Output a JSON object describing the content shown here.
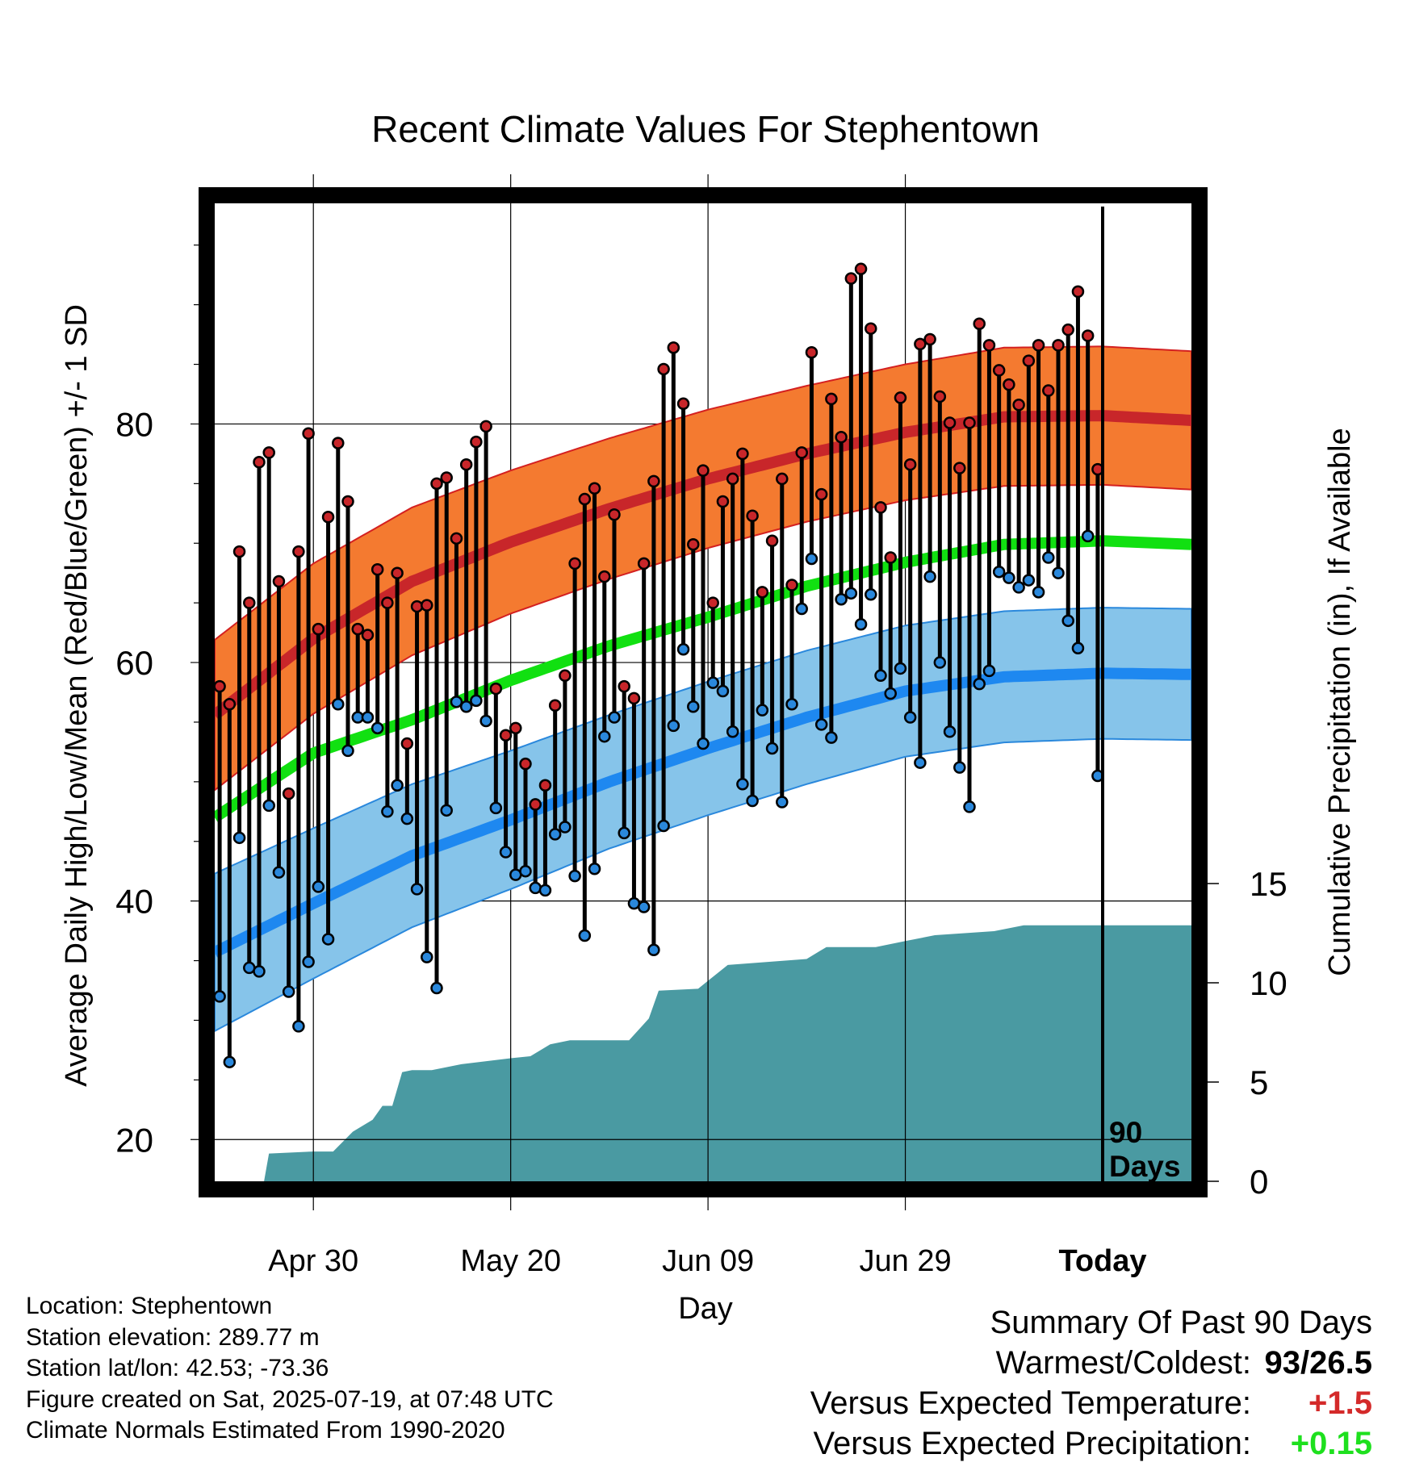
{
  "chart_data": {
    "type": "line",
    "title": "Recent Climate Values For Stephentown",
    "xlabel": "Day",
    "ylabel_left": "Average Daily High/Low/Mean (Red/Blue/Green) +/- 1 SD",
    "ylabel_right": "Cumulative Precipitation (in), If Available",
    "x_range": [
      -90,
      9
    ],
    "y_left_range": [
      16.5,
      98.5
    ],
    "y_left_ticks": [
      20,
      40,
      60,
      80
    ],
    "y_left_tick_labels": [
      "20",
      "40",
      "60",
      "80"
    ],
    "y_right_ticks": [
      0,
      5,
      10,
      15
    ],
    "y_right_tick_labels": [
      "0",
      "5",
      "10",
      "15"
    ],
    "x_tick_days": [
      -80,
      -60,
      -40,
      -20,
      0
    ],
    "x_tick_labels": [
      "Apr 30",
      "May 20",
      "Jun 09",
      "Jun 29",
      "Today"
    ],
    "today_label": "90 Days",
    "grid": true,
    "normals": {
      "days": [
        -90,
        -80,
        -70,
        -60,
        -50,
        -40,
        -30,
        -20,
        -10,
        0,
        9
      ],
      "high_mean": [
        55.6,
        62.0,
        66.8,
        70.1,
        72.9,
        75.4,
        77.5,
        79.3,
        80.6,
        80.7,
        80.3
      ],
      "high_sd": [
        6.3,
        6.3,
        6.2,
        6.0,
        5.9,
        5.8,
        5.7,
        5.7,
        5.8,
        5.8,
        5.8
      ],
      "low_mean": [
        35.7,
        39.8,
        43.8,
        46.8,
        50.0,
        52.8,
        55.4,
        57.6,
        58.8,
        59.1,
        59.0
      ],
      "low_sd": [
        6.6,
        6.3,
        6.0,
        5.8,
        5.6,
        5.6,
        5.6,
        5.5,
        5.5,
        5.5,
        5.5
      ],
      "mean": [
        47.0,
        52.4,
        55.2,
        58.5,
        61.4,
        63.8,
        66.4,
        68.4,
        69.9,
        70.2,
        69.9
      ]
    },
    "series": [
      {
        "name": "High",
        "color": "#c8262a",
        "values": [
          58,
          56.5,
          69.3,
          65,
          76.8,
          77.6,
          66.8,
          49,
          69.3,
          79.2,
          62.8,
          72.2,
          78.4,
          73.5,
          62.8,
          62.3,
          67.8,
          65,
          67.5,
          53.2,
          64.7,
          64.8,
          75,
          75.5,
          70.4,
          76.6,
          78.5,
          79.8,
          57.8,
          53.9,
          54.5,
          51.5,
          48.1,
          49.7,
          56.4,
          58.9,
          68.3,
          73.7,
          74.6,
          67.2,
          72.4,
          58,
          57,
          68.3,
          75.2,
          84.6,
          86.4,
          81.7,
          69.9,
          76.1,
          65,
          73.5,
          75.4,
          77.5,
          72.3,
          65.9,
          70.2,
          75.4,
          66.5,
          77.6,
          86,
          74.1,
          82.1,
          78.9,
          92.2,
          93,
          88,
          73,
          68.8,
          82.2,
          76.6,
          86.7,
          87.1,
          82.3,
          80.1,
          76.3,
          80.1,
          88.4,
          86.6,
          84.5,
          83.3,
          81.6,
          85.3,
          86.6,
          82.8,
          86.6,
          87.9,
          91.1,
          87.4,
          76.2
        ]
      },
      {
        "name": "Low",
        "color": "#2a88dc",
        "values": [
          32,
          26.5,
          45.3,
          34.4,
          34.1,
          48,
          42.4,
          32.4,
          29.5,
          34.9,
          41.2,
          36.8,
          56.5,
          52.6,
          55.4,
          55.4,
          54.5,
          47.5,
          49.7,
          46.9,
          41,
          35.3,
          32.7,
          47.6,
          56.7,
          56.3,
          56.8,
          55.1,
          47.8,
          44.1,
          42.2,
          42.5,
          41.1,
          40.9,
          45.6,
          46.2,
          42.1,
          37.1,
          42.7,
          53.8,
          55.4,
          45.7,
          39.8,
          39.5,
          35.9,
          46.3,
          54.7,
          61.1,
          56.3,
          53.2,
          58.3,
          57.6,
          54.2,
          49.8,
          48.4,
          56,
          52.8,
          48.3,
          56.5,
          64.5,
          68.7,
          54.8,
          53.7,
          65.3,
          65.8,
          63.2,
          65.7,
          58.9,
          57.4,
          59.5,
          55.4,
          51.6,
          67.2,
          60,
          54.2,
          51.2,
          47.9,
          58.2,
          59.3,
          67.6,
          67.1,
          66.3,
          66.9,
          65.9,
          68.8,
          67.5,
          63.5,
          61.2,
          70.6,
          50.5
        ]
      }
    ],
    "precip_cumulative": {
      "days": [
        -90,
        -85,
        -84.5,
        -80,
        -78,
        -76,
        -74,
        -73,
        -72,
        -71,
        -70,
        -68,
        -65,
        -60,
        -58,
        -56,
        -54,
        -52,
        -50,
        -48,
        -46,
        -45,
        -41,
        -40,
        -39,
        -38,
        -30,
        -28,
        -23,
        -20,
        -17,
        -14,
        -11,
        -8,
        9
      ],
      "values": [
        0,
        0,
        1.4,
        1.5,
        1.5,
        2.5,
        3.1,
        3.8,
        3.8,
        5.5,
        5.6,
        5.6,
        5.9,
        6.2,
        6.3,
        6.9,
        7.1,
        7.1,
        7.1,
        7.1,
        8.2,
        9.6,
        9.7,
        10.1,
        10.5,
        10.9,
        11.2,
        11.8,
        11.8,
        12.1,
        12.4,
        12.5,
        12.6,
        12.9,
        12.9
      ]
    }
  },
  "info": {
    "location": "Location: Stephentown",
    "elevation": "Station elevation: 289.77 m",
    "latlon": "Station lat/lon: 42.53; -73.36",
    "created": "Figure created on Sat, 2025-07-19, at 07:48 UTC",
    "normals_note": "Climate Normals Estimated From 1990-2020"
  },
  "summary": {
    "title": "Summary Of Past 90 Days",
    "warmest_label": "Warmest/Coldest:",
    "warmest_value": "93/26.5",
    "temp_label": "Versus Expected Temperature:",
    "temp_value": "+1.5",
    "temp_color": "#d42a2a",
    "precip_label": "Versus Expected Precipitation:",
    "precip_value": "+0.15",
    "precip_color": "#1ee01e"
  }
}
